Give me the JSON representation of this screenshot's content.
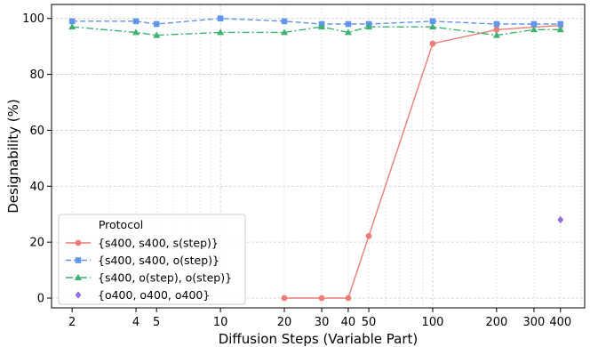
{
  "chart_data": {
    "type": "line",
    "xlabel": "Diffusion Steps (Variable Part)",
    "ylabel": "Designability (%)",
    "x_scale": "log",
    "xlim": [
      1.6,
      520
    ],
    "ylim": [
      -3.5,
      105
    ],
    "x_ticks": [
      2,
      4,
      5,
      10,
      20,
      30,
      40,
      50,
      100,
      200,
      300,
      400
    ],
    "y_ticks": [
      0,
      20,
      40,
      60,
      80,
      100
    ],
    "grid": true,
    "legend": {
      "title": "Protocol",
      "placement": "lower-left"
    },
    "series": [
      {
        "name": "{s400, s400, s(step)}",
        "color": "#f07c78",
        "marker": "circle",
        "line": "solid",
        "x": [
          20,
          30,
          40,
          50,
          100,
          200,
          400
        ],
        "y": [
          0,
          0,
          0,
          22.2,
          91,
          96,
          97.5
        ]
      },
      {
        "name": "{s400, s400, o(step)}",
        "color": "#6495ed",
        "marker": "square",
        "line": "dashed",
        "x": [
          2,
          4,
          5,
          10,
          20,
          30,
          40,
          50,
          100,
          200,
          300,
          400
        ],
        "y": [
          99,
          99,
          98,
          100,
          99,
          98,
          98,
          98,
          99,
          98,
          98,
          98
        ]
      },
      {
        "name": "{s400, o(step), o(step)}",
        "color": "#3cb371",
        "marker": "triangle",
        "line": "dashdot",
        "x": [
          2,
          4,
          5,
          10,
          20,
          30,
          40,
          50,
          100,
          200,
          300,
          400
        ],
        "y": [
          97,
          95,
          94,
          95,
          95,
          97,
          95,
          97,
          97,
          94,
          96,
          96
        ]
      },
      {
        "name": "{o400, o400, o400}",
        "color": "#9370db",
        "marker": "diamond",
        "line": "none",
        "x": [
          400
        ],
        "y": [
          28
        ]
      }
    ]
  }
}
